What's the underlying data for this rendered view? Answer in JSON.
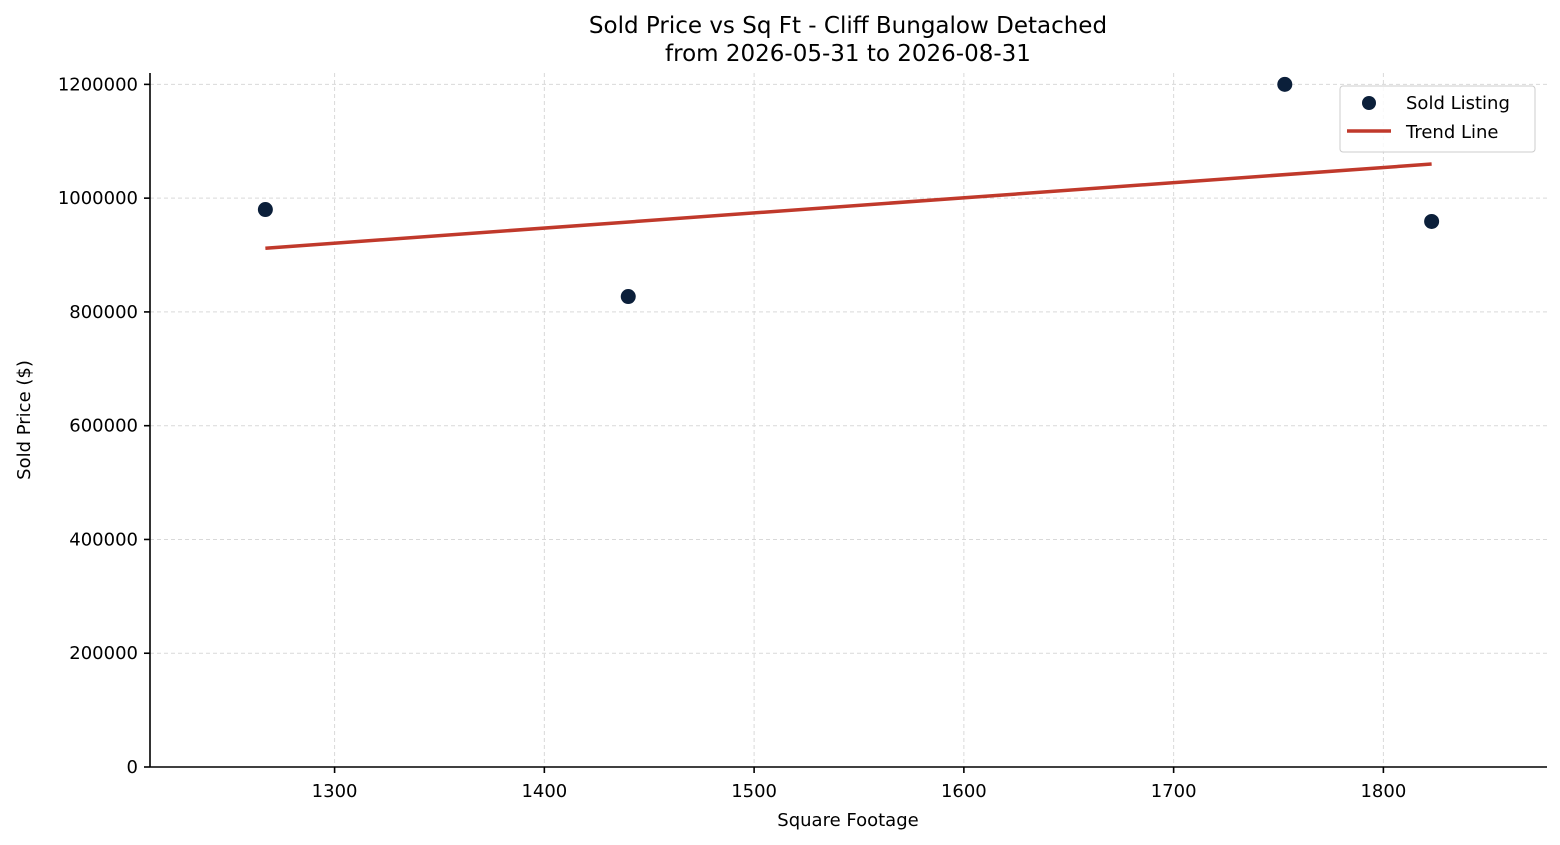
{
  "chart_data": {
    "type": "scatter",
    "title": "Sold Price vs Sq Ft - Cliff Bungalow Detached",
    "subtitle": "from 2026-05-31 to 2026-08-31",
    "xlabel": "Square Footage",
    "ylabel": "Sold Price ($)",
    "xlim": [
      1212,
      1878
    ],
    "ylim": [
      0,
      1220000
    ],
    "x_ticks": [
      1300,
      1400,
      1500,
      1600,
      1700,
      1800
    ],
    "y_ticks": [
      0,
      200000,
      400000,
      600000,
      800000,
      1000000,
      1200000
    ],
    "x_tick_labels": [
      "1300",
      "1400",
      "1500",
      "1600",
      "1700",
      "1800"
    ],
    "y_tick_labels": [
      "0",
      "200000",
      "400000",
      "600000",
      "800000",
      "1000000",
      "1200000"
    ],
    "grid": true,
    "legend_position": "top-right",
    "series": [
      {
        "name": "Sold Listing",
        "kind": "scatter",
        "color": "#0b1f3a",
        "points": [
          {
            "x": 1267,
            "y": 980000
          },
          {
            "x": 1440,
            "y": 827000
          },
          {
            "x": 1753,
            "y": 1200000
          },
          {
            "x": 1823,
            "y": 959000
          }
        ]
      },
      {
        "name": "Trend Line",
        "kind": "line",
        "color": "#c0392b",
        "points": [
          {
            "x": 1267,
            "y": 912000
          },
          {
            "x": 1823,
            "y": 1060000
          }
        ]
      }
    ]
  }
}
